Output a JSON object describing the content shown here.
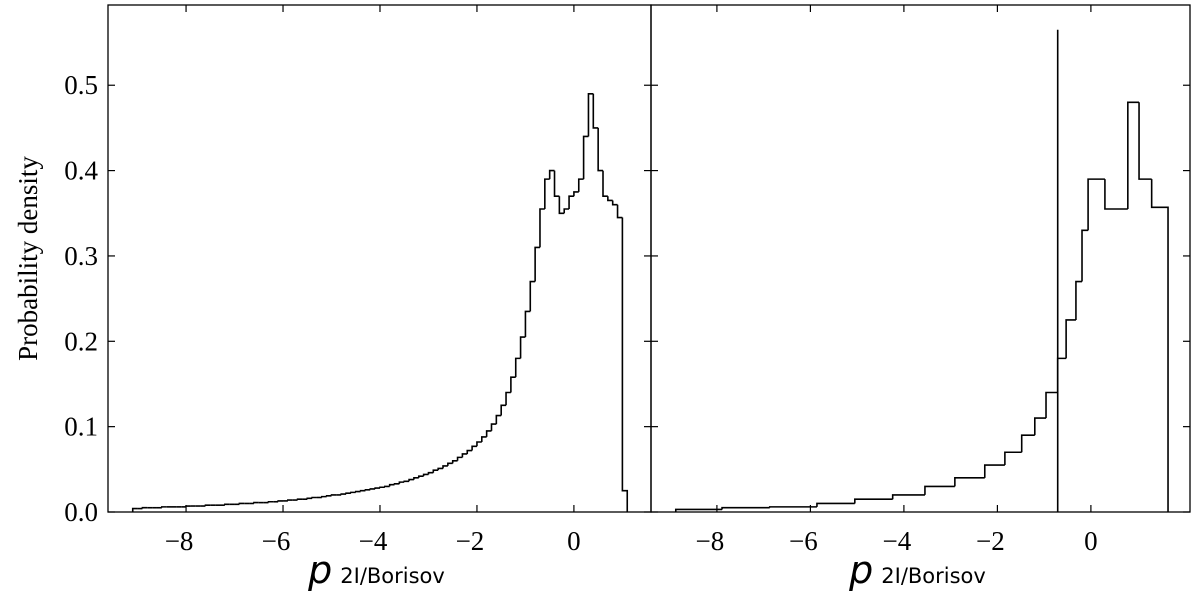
{
  "chart_data": [
    {
      "type": "histogram",
      "ylabel": "Probability density",
      "xlabel": "p",
      "xlabel_sub": "2I/Borisov",
      "bins": [
        -9.1,
        -9,
        -8.9,
        -8.8,
        -8.7,
        -8.6,
        -8.5,
        -8.4,
        -8.3,
        -8.2,
        -8.1,
        -8,
        -7.9,
        -7.8,
        -7.7,
        -7.6,
        -7.5,
        -7.4,
        -7.3,
        -7.2,
        -7.1,
        -7,
        -6.9,
        -6.8,
        -6.7,
        -6.6,
        -6.5,
        -6.4,
        -6.3,
        -6.2,
        -6.1,
        -6,
        -5.9,
        -5.8,
        -5.7,
        -5.6,
        -5.5,
        -5.4,
        -5.3,
        -5.2,
        -5.1,
        -5,
        -4.9,
        -4.8,
        -4.7,
        -4.6,
        -4.5,
        -4.4,
        -4.3,
        -4.2,
        -4.1,
        -4,
        -3.9,
        -3.8,
        -3.7,
        -3.6,
        -3.5,
        -3.4,
        -3.3,
        -3.2,
        -3.1,
        -3,
        -2.9,
        -2.8,
        -2.7,
        -2.6,
        -2.5,
        -2.4,
        -2.3,
        -2.2,
        -2.1,
        -2,
        -1.9,
        -1.8,
        -1.7,
        -1.6,
        -1.5,
        -1.4,
        -1.3,
        -1.2,
        -1.1,
        -1,
        -0.9,
        -0.8,
        -0.7,
        -0.6,
        -0.5,
        -0.4,
        -0.3,
        -0.2,
        -0.1,
        0,
        0.1,
        0.2,
        0.3,
        0.4,
        0.5,
        0.6,
        0.7,
        0.8,
        0.9,
        1,
        1.1
      ],
      "values": [
        0.004,
        0.004,
        0.005,
        0.005,
        0.005,
        0.005,
        0.006,
        0.006,
        0.006,
        0.006,
        0.006,
        0.007,
        0.007,
        0.007,
        0.007,
        0.008,
        0.008,
        0.008,
        0.008,
        0.009,
        0.009,
        0.009,
        0.01,
        0.01,
        0.01,
        0.011,
        0.011,
        0.011,
        0.012,
        0.012,
        0.013,
        0.013,
        0.014,
        0.014,
        0.015,
        0.015,
        0.016,
        0.017,
        0.017,
        0.018,
        0.019,
        0.02,
        0.02,
        0.021,
        0.022,
        0.023,
        0.024,
        0.025,
        0.026,
        0.027,
        0.028,
        0.029,
        0.03,
        0.032,
        0.033,
        0.035,
        0.036,
        0.038,
        0.04,
        0.042,
        0.044,
        0.046,
        0.049,
        0.051,
        0.054,
        0.057,
        0.06,
        0.064,
        0.068,
        0.072,
        0.077,
        0.082,
        0.088,
        0.095,
        0.103,
        0.113,
        0.125,
        0.14,
        0.158,
        0.18,
        0.205,
        0.235,
        0.27,
        0.31,
        0.355,
        0.39,
        0.4,
        0.37,
        0.35,
        0.355,
        0.37,
        0.375,
        0.39,
        0.44,
        0.49,
        0.45,
        0.4,
        0.37,
        0.365,
        0.36,
        0.345,
        0.025
      ],
      "color": "#000000",
      "xlim": [
        -9.61,
        1.59
      ],
      "ylim": [
        0,
        0.594
      ],
      "xticks": [
        {
          "value": -8,
          "label": "−8"
        },
        {
          "value": -6,
          "label": "−6"
        },
        {
          "value": -4,
          "label": "−4"
        },
        {
          "value": -2,
          "label": "−2"
        },
        0
      ],
      "yticks": [
        {
          "value": 0,
          "label": "0.0"
        },
        0.1,
        0.2,
        0.3,
        0.4,
        0.5
      ],
      "show_ytick_labels": true
    },
    {
      "type": "histogram",
      "xlabel": "p",
      "xlabel_sub": "2I/Borisov",
      "bins": [
        -8.88,
        -7.89,
        -6.87,
        -5.86,
        -5.05,
        -4.24,
        -3.55,
        -2.91,
        -2.27,
        -1.84,
        -1.48,
        -1.2,
        -0.96,
        -0.71,
        -0.53,
        -0.32,
        -0.19,
        -0.06,
        0.3,
        0.79,
        1.03,
        1.3,
        1.65
      ],
      "values": [
        0.003,
        0.005,
        0.006,
        0.01,
        0.015,
        0.02,
        0.03,
        0.04,
        0.055,
        0.07,
        0.09,
        0.11,
        0.14,
        0.18,
        0.225,
        0.27,
        0.33,
        0.39,
        0.355,
        0.48,
        0.39,
        0.357
      ],
      "color": "#000000",
      "vline": {
        "x": -0.71,
        "y": 0.565
      },
      "xlim": [
        -9.41,
        2.12
      ],
      "ylim": [
        0,
        0.594
      ],
      "xticks": [
        {
          "value": -8,
          "label": "−8"
        },
        {
          "value": -6,
          "label": "−6"
        },
        {
          "value": -4,
          "label": "−4"
        },
        {
          "value": -2,
          "label": "−2"
        },
        0
      ],
      "yticks": [
        0,
        0.1,
        0.2,
        0.3,
        0.4,
        0.5
      ],
      "show_ytick_labels": false
    }
  ]
}
